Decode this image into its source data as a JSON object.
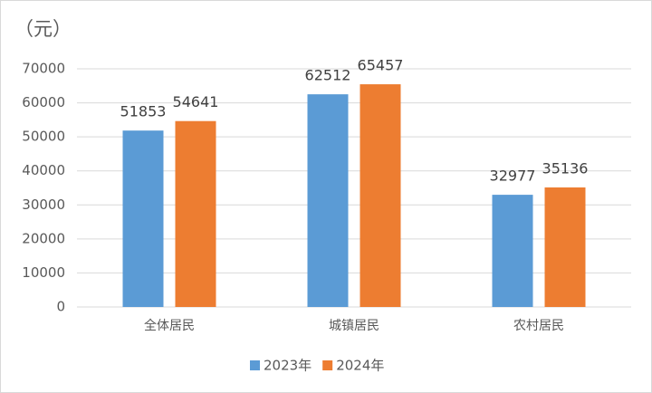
{
  "chart_data": {
    "type": "bar",
    "y_label": "（元）",
    "categories": [
      "全体居民",
      "城镇居民",
      "农村居民"
    ],
    "series": [
      {
        "name": "2023年",
        "color": "#5b9bd5",
        "values": [
          51853,
          62512,
          32977
        ]
      },
      {
        "name": "2024年",
        "color": "#ed7d31",
        "values": [
          54641,
          65457,
          35136
        ]
      }
    ],
    "ylim": [
      0,
      70000
    ],
    "yticks": [
      0,
      10000,
      20000,
      30000,
      40000,
      50000,
      60000,
      70000
    ],
    "grid": true,
    "legend": "bottom",
    "data_labels": true
  }
}
